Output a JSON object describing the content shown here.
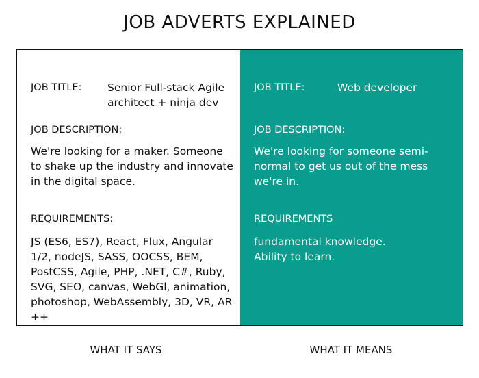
{
  "title": "JOB ADVERTS EXPLAINED",
  "left": {
    "job_title_label": "JOB TITLE:",
    "job_title_value": "Senior Full-stack Agile architect + ninja dev",
    "job_description_label": "JOB DESCRIPTION:",
    "job_description_text": "We're looking for a maker. Someone to shake up the industry and innovate in the digital space.",
    "requirements_label": "REQUIREMENTS:",
    "requirements_text": "JS (ES6, ES7), React, Flux, Angular 1/2, nodeJS, SASS, OOCSS, BEM, PostCSS, Agile, PHP, .NET, C#, Ruby, SVG, SEO, canvas, WebGl, animation, photoshop, WebAssembly, 3D, VR, AR ++"
  },
  "right": {
    "job_title_label": "JOB TITLE:",
    "job_title_value": "Web developer",
    "job_description_label": "JOB DESCRIPTION:",
    "job_description_text": "We're looking for someone semi-normal to get us out of the mess we're in.",
    "requirements_label": "REQUIREMENTS",
    "requirements_text_line1": "fundamental knowledge.",
    "requirements_text_line2": "Ability to learn."
  },
  "captions": {
    "left": "WHAT IT SAYS",
    "right": "WHAT IT MEANS"
  },
  "colors": {
    "right_panel_bg": "#0a9c8e",
    "border": "#111111"
  }
}
